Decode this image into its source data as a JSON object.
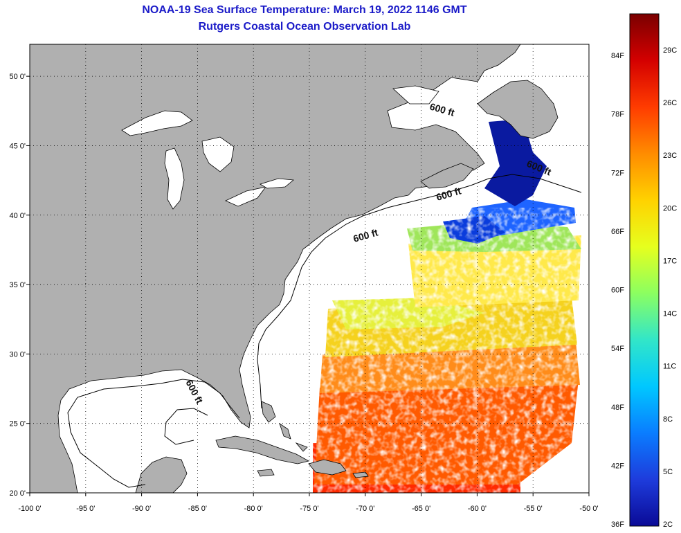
{
  "title": {
    "line1": "NOAA-19 Sea Surface Temperature:  March 19, 2022 1146 GMT",
    "line2": "Rutgers Coastal Ocean Observation Lab"
  },
  "map": {
    "lon_range": [
      -100,
      -50
    ],
    "lat_range": [
      20,
      52
    ],
    "lon_ticks": [
      {
        "value": -100,
        "label": "-100 0'"
      },
      {
        "value": -95,
        "label": "-95 0'"
      },
      {
        "value": -90,
        "label": "-90 0'"
      },
      {
        "value": -85,
        "label": "-85 0'"
      },
      {
        "value": -80,
        "label": "-80 0'"
      },
      {
        "value": -75,
        "label": "-75 0'"
      },
      {
        "value": -70,
        "label": "-70 0'"
      },
      {
        "value": -65,
        "label": "-65 0'"
      },
      {
        "value": -60,
        "label": "-60 0'"
      },
      {
        "value": -55,
        "label": "-55 0'"
      },
      {
        "value": -50,
        "label": "-50 0'"
      }
    ],
    "lat_ticks": [
      {
        "value": 50,
        "label": "50 0'"
      },
      {
        "value": 45,
        "label": "45 0'"
      },
      {
        "value": 40,
        "label": "40 0'"
      },
      {
        "value": 35,
        "label": "35 0'"
      },
      {
        "value": 30,
        "label": "30 0'"
      },
      {
        "value": 25,
        "label": "25 0'"
      },
      {
        "value": 20,
        "label": "20 0'"
      }
    ],
    "contour_labels": [
      "600 ft",
      "600 ft",
      "600 ft",
      "600 ft",
      "600 ft"
    ],
    "colors": {
      "land": "#b0b0b0",
      "ocean_no_data": "#ffffff",
      "grid": "#000000"
    }
  },
  "colorbar": {
    "fahrenheit_labels": [
      "84F",
      "78F",
      "72F",
      "66F",
      "60F",
      "54F",
      "48F",
      "42F",
      "36F"
    ],
    "celsius_labels": [
      "29C",
      "26C",
      "23C",
      "20C",
      "17C",
      "14C",
      "11C",
      "8C",
      "5C",
      "2C"
    ],
    "stops": [
      "#7a0000",
      "#d40000",
      "#ff3c00",
      "#ff8c00",
      "#ffd200",
      "#e6ff1e",
      "#8cff60",
      "#32e6c8",
      "#00c8ff",
      "#0a7dff",
      "#1e3cdc",
      "#0a0a96"
    ]
  }
}
